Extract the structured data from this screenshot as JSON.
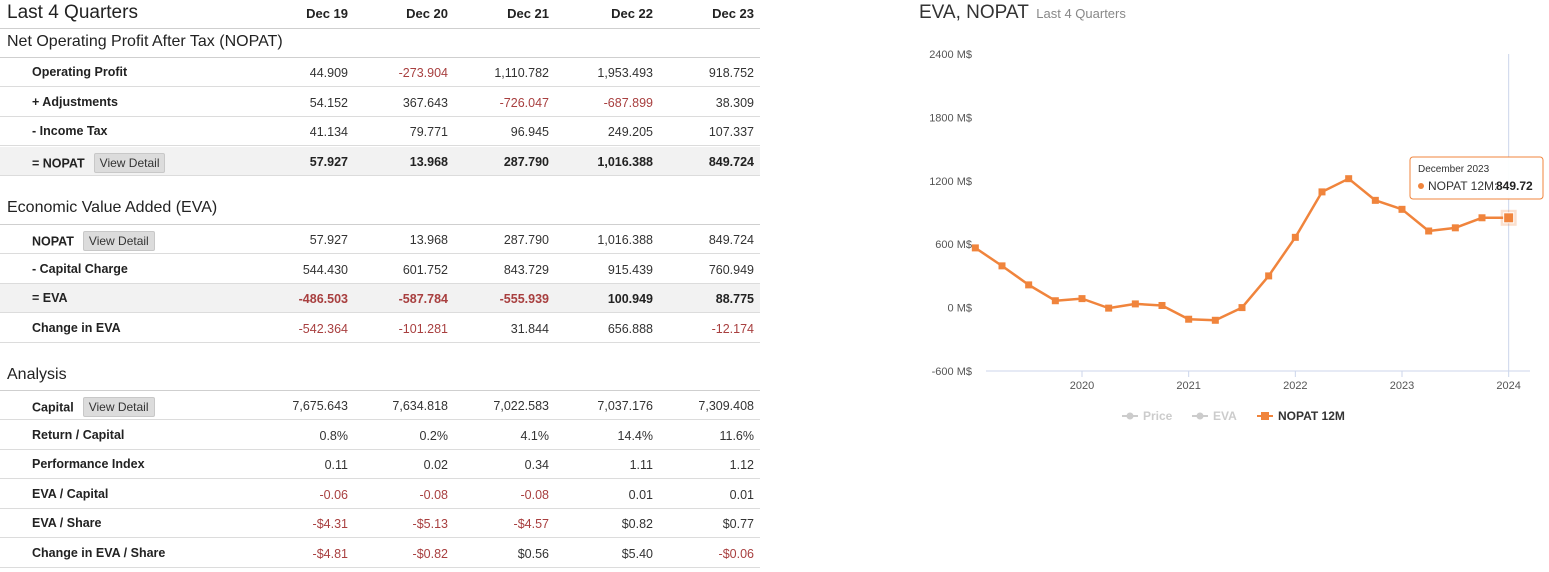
{
  "table": {
    "title": "Last 4 Quarters",
    "columns": [
      "Dec 19",
      "Dec 20",
      "Dec 21",
      "Dec 22",
      "Dec 23"
    ],
    "view_detail_label": "View Detail",
    "sections": [
      {
        "title": "Net Operating Profit After Tax (NOPAT)",
        "rows": [
          {
            "label": "Operating Profit",
            "values": [
              "44.909",
              "-273.904",
              "1,110.782",
              "1,953.493",
              "918.752"
            ]
          },
          {
            "label": "+ Adjustments",
            "values": [
              "54.152",
              "367.643",
              "-726.047",
              "-687.899",
              "38.309"
            ]
          },
          {
            "label": "- Income Tax",
            "values": [
              "41.134",
              "79.771",
              "96.945",
              "249.205",
              "107.337"
            ]
          },
          {
            "label": "= NOPAT",
            "values": [
              "57.927",
              "13.968",
              "287.790",
              "1,016.388",
              "849.724"
            ]
          }
        ]
      },
      {
        "title": "Economic Value Added (EVA)",
        "rows": [
          {
            "label": "NOPAT",
            "values": [
              "57.927",
              "13.968",
              "287.790",
              "1,016.388",
              "849.724"
            ]
          },
          {
            "label": "- Capital Charge",
            "values": [
              "544.430",
              "601.752",
              "843.729",
              "915.439",
              "760.949"
            ]
          },
          {
            "label": "= EVA",
            "values": [
              "-486.503",
              "-587.784",
              "-555.939",
              "100.949",
              "88.775"
            ]
          },
          {
            "label": "Change in EVA",
            "values": [
              "-542.364",
              "-101.281",
              "31.844",
              "656.888",
              "-12.174"
            ]
          }
        ]
      },
      {
        "title": "Analysis",
        "rows": [
          {
            "label": "Capital",
            "values": [
              "7,675.643",
              "7,634.818",
              "7,022.583",
              "7,037.176",
              "7,309.408"
            ]
          },
          {
            "label": "Return / Capital",
            "values": [
              "0.8%",
              "0.2%",
              "4.1%",
              "14.4%",
              "11.6%"
            ]
          },
          {
            "label": "Performance Index",
            "values": [
              "0.11",
              "0.02",
              "0.34",
              "1.11",
              "1.12"
            ]
          },
          {
            "label": "EVA / Capital",
            "values": [
              "-0.06",
              "-0.08",
              "-0.08",
              "0.01",
              "0.01"
            ]
          },
          {
            "label": "EVA / Share",
            "values": [
              "-$4.31",
              "-$5.13",
              "-$4.57",
              "$0.82",
              "$0.77"
            ]
          },
          {
            "label": "Change in EVA / Share",
            "values": [
              "-$4.81",
              "-$0.82",
              "$0.56",
              "$5.40",
              "-$0.06"
            ]
          }
        ]
      }
    ]
  },
  "chart": {
    "title": "EVA, NOPAT",
    "subtitle": "Last 4 Quarters",
    "tooltip": {
      "date": "December 2023",
      "series": "NOPAT 12M:",
      "value": "849.72"
    },
    "legend": [
      {
        "name": "Price",
        "active": false
      },
      {
        "name": "EVA",
        "active": false
      },
      {
        "name": "NOPAT 12M",
        "active": true
      }
    ]
  },
  "chart_data": {
    "type": "line",
    "title": "EVA, NOPAT",
    "subtitle": "Last 4 Quarters",
    "y_tick_labels": [
      "2400 M$",
      "1800 M$",
      "1200 M$",
      "600 M$",
      "0 M$",
      "-600 M$"
    ],
    "y_ticks": [
      2400,
      1800,
      1200,
      600,
      0,
      -600
    ],
    "ylim": [
      -600,
      2400
    ],
    "x_tick_labels": [
      "2020",
      "2021",
      "2022",
      "2023",
      "2024"
    ],
    "x_ticks": [
      2020,
      2021,
      2022,
      2023,
      2024
    ],
    "xlim": [
      2019.1,
      2024.2
    ],
    "grid": false,
    "legend_position": "bottom",
    "series": [
      {
        "name": "NOPAT 12M",
        "color": "#f0843c",
        "x": [
          2019.0,
          2019.25,
          2019.5,
          2019.75,
          2020.0,
          2020.25,
          2020.5,
          2020.75,
          2021.0,
          2021.25,
          2021.5,
          2021.75,
          2022.0,
          2022.25,
          2022.5,
          2022.75,
          2023.0,
          2023.25,
          2023.5,
          2023.75,
          2024.0
        ],
        "values": [
          565,
          395,
          215,
          65,
          85,
          -5,
          35,
          20,
          -110,
          -120,
          0,
          300,
          665,
          1095,
          1220,
          1015,
          930,
          725,
          755,
          850,
          850
        ]
      }
    ],
    "highlight": {
      "series": "NOPAT 12M",
      "label": "December 2023",
      "value": 849.72
    }
  }
}
